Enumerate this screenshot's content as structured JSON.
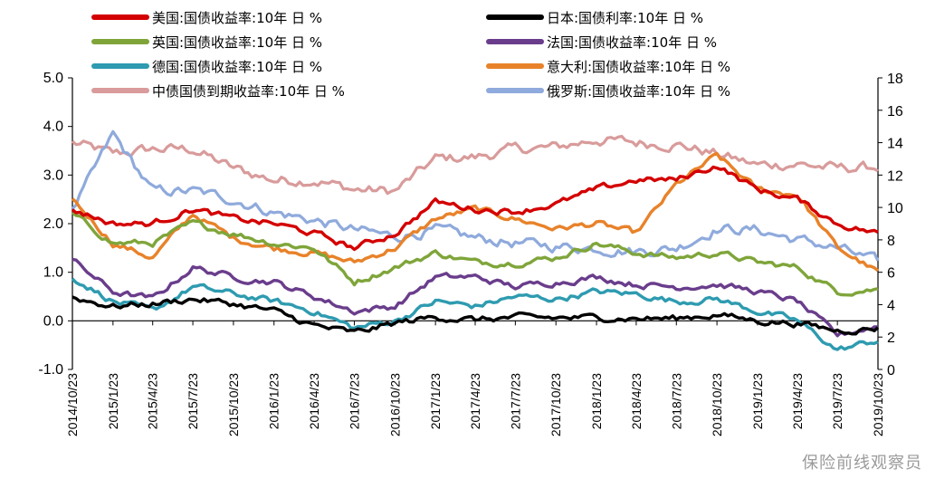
{
  "chart_data": {
    "type": "line",
    "x_dates": [
      "2014/10/23",
      "2015/1/23",
      "2015/4/23",
      "2015/7/23",
      "2015/10/23",
      "2016/1/23",
      "2016/4/23",
      "2016/7/23",
      "2016/10/23",
      "2017/1/23",
      "2017/4/23",
      "2017/7/23",
      "2017/10/23",
      "2018/1/23",
      "2018/4/23",
      "2018/7/23",
      "2018/10/23",
      "2019/1/23",
      "2019/4/23",
      "2019/7/23",
      "2019/10/23"
    ],
    "x_tick_labels": [
      "2014/10/23",
      "2015/1/23",
      "2015/4/23",
      "2015/7/23",
      "2015/10/23",
      "2016/1/23",
      "2016/4/23",
      "2016/7/23",
      "2016/10/23",
      "2017/1/23",
      "2017/4/23",
      "2017/7/23",
      "2017/10/23",
      "2018/1/23",
      "2018/4/23",
      "2018/7/23",
      "2018/10/23",
      "2019/1/23",
      "2019/4/23",
      "2019/7/23",
      "2019/10/23"
    ],
    "y_left_range": [
      -1.0,
      5.0
    ],
    "y_left_ticks": [
      "5.0",
      "4.0",
      "3.0",
      "2.0",
      "1.0",
      "0.0",
      "-1.0"
    ],
    "y_left_tick_values": [
      5,
      4,
      3,
      2,
      1,
      0,
      -1
    ],
    "y_right_range": [
      0,
      18
    ],
    "y_right_ticks": [
      "18",
      "16",
      "14",
      "12",
      "10",
      "8",
      "6",
      "4",
      "2",
      "0"
    ],
    "y_right_tick_values": [
      18,
      16,
      14,
      12,
      10,
      8,
      6,
      4,
      2,
      0
    ],
    "grid": false,
    "legend_position": "top",
    "series": [
      {
        "name": "美国:国债收益率:10年 日 %",
        "color": "#d40000",
        "axis": "left",
        "values": [
          2.3,
          2.0,
          2.0,
          2.3,
          2.1,
          2.0,
          1.8,
          1.5,
          1.8,
          2.45,
          2.3,
          2.25,
          2.4,
          2.7,
          2.9,
          2.9,
          3.2,
          2.7,
          2.5,
          2.0,
          1.8
        ]
      },
      {
        "name": "日本:国债利率:10年 日 %",
        "color": "#000000",
        "axis": "left",
        "values": [
          0.48,
          0.3,
          0.35,
          0.45,
          0.35,
          0.2,
          -0.1,
          -0.25,
          -0.05,
          0.08,
          0.02,
          0.07,
          0.06,
          0.07,
          0.05,
          0.05,
          0.13,
          0.0,
          -0.05,
          -0.2,
          -0.15
        ]
      },
      {
        "name": "英国:国债收益率:10年 日 %",
        "color": "#7fa53a",
        "axis": "left",
        "values": [
          2.2,
          1.6,
          1.6,
          2.0,
          1.8,
          1.6,
          1.5,
          0.8,
          1.1,
          1.4,
          1.2,
          1.2,
          1.3,
          1.6,
          1.4,
          1.3,
          1.4,
          1.2,
          1.1,
          0.6,
          0.65
        ]
      },
      {
        "name": "法国:国债收益率:10年 日 %",
        "color": "#6a3d8c",
        "axis": "left",
        "values": [
          1.25,
          0.6,
          0.45,
          1.1,
          0.9,
          0.8,
          0.5,
          0.2,
          0.3,
          0.9,
          0.9,
          0.7,
          0.8,
          0.9,
          0.75,
          0.7,
          0.75,
          0.6,
          0.4,
          -0.3,
          -0.1
        ]
      },
      {
        "name": "德国:国债收益率:10年 日 %",
        "color": "#2e9bb0",
        "axis": "left",
        "values": [
          0.9,
          0.4,
          0.2,
          0.7,
          0.55,
          0.4,
          0.2,
          -0.15,
          0.0,
          0.4,
          0.3,
          0.5,
          0.45,
          0.6,
          0.55,
          0.4,
          0.45,
          0.2,
          0.0,
          -0.6,
          -0.4
        ]
      },
      {
        "name": "意大利:国债收益率:10年 日 %",
        "color": "#e8822a",
        "axis": "left",
        "values": [
          2.5,
          1.6,
          1.3,
          2.2,
          1.7,
          1.5,
          1.4,
          1.2,
          1.5,
          2.1,
          2.3,
          2.1,
          1.9,
          2.0,
          1.8,
          2.8,
          3.4,
          2.7,
          2.6,
          1.5,
          1.0
        ]
      },
      {
        "name": "中债国债到期收益率:10年 日 %",
        "color": "#d99b9b",
        "axis": "right",
        "values": [
          14.0,
          13.3,
          13.6,
          13.6,
          12.4,
          11.7,
          11.7,
          11.1,
          11.0,
          13.0,
          13.1,
          13.6,
          13.7,
          14.2,
          14.0,
          13.9,
          13.3,
          12.6,
          12.7,
          12.4,
          12.5
        ]
      },
      {
        "name": "俄罗斯:国债收益率:10年 日 %",
        "color": "#8faadc",
        "axis": "right",
        "values": [
          9.7,
          14.5,
          11.0,
          11.0,
          10.5,
          9.7,
          9.2,
          8.6,
          8.2,
          8.6,
          8.1,
          7.8,
          7.6,
          7.5,
          7.3,
          7.5,
          8.7,
          8.6,
          8.0,
          7.5,
          6.6
        ]
      }
    ]
  },
  "watermark": "保险前线观察员"
}
